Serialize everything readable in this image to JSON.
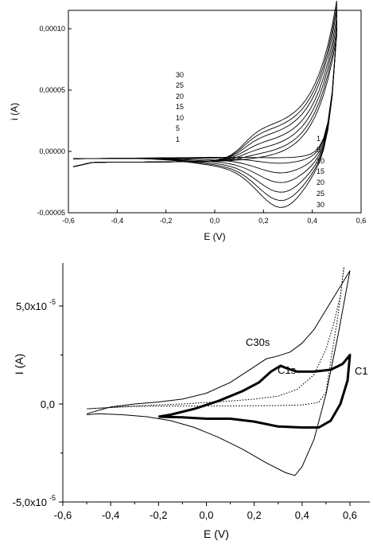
{
  "chart_data": [
    {
      "type": "line",
      "xlabel": "E (V)",
      "ylabel": "i (A)",
      "xlim": [
        -0.6,
        0.6
      ],
      "ylim": [
        -5e-05,
        0.000115
      ],
      "x_ticks": [
        -0.6,
        -0.4,
        -0.2,
        0.0,
        0.2,
        0.4,
        0.6
      ],
      "x_tick_labels": [
        "-0,6",
        "-0,4",
        "-0,2",
        "0,0",
        "0,2",
        "0,4",
        "0,6"
      ],
      "y_ticks": [
        -5e-05,
        0.0,
        5e-05,
        0.0001
      ],
      "y_tick_labels": [
        "-0,00005",
        "0,00000",
        "0,00005",
        "0,00010"
      ],
      "anodic_labels": [
        "30",
        "25",
        "20",
        "15",
        "10",
        "5",
        "1"
      ],
      "cathodic_labels": [
        "1",
        "5",
        "10",
        "15",
        "20",
        "25",
        "30"
      ],
      "series": [
        {
          "cycle": 1,
          "anodic_peak_i": 1e-06,
          "cathodic_peak_i": -1e-06,
          "end_i": 0.0001
        },
        {
          "cycle": 5,
          "anodic_peak_i": 4.5e-06,
          "cathodic_peak_i": -5e-06,
          "end_i": 0.000101
        },
        {
          "cycle": 10,
          "anodic_peak_i": 9e-06,
          "cathodic_peak_i": -1.2e-05,
          "end_i": 0.000102
        },
        {
          "cycle": 15,
          "anodic_peak_i": 1.4e-05,
          "cathodic_peak_i": -1.9e-05,
          "end_i": 0.000102
        },
        {
          "cycle": 20,
          "anodic_peak_i": 1.9e-05,
          "cathodic_peak_i": -2.6e-05,
          "end_i": 0.000103
        },
        {
          "cycle": 25,
          "anodic_peak_i": 2.3e-05,
          "cathodic_peak_i": -3.2e-05,
          "end_i": 0.000103
        },
        {
          "cycle": 30,
          "anodic_peak_i": 2.65e-05,
          "cathodic_peak_i": -3.7e-05,
          "end_i": 0.000104
        }
      ]
    },
    {
      "type": "line",
      "xlabel": "E (V)",
      "ylabel": "I (A)",
      "xlim": [
        -0.6,
        0.6
      ],
      "ylim": [
        -5e-05,
        7e-05
      ],
      "x_ticks": [
        -0.6,
        -0.4,
        -0.2,
        0.0,
        0.2,
        0.4,
        0.6
      ],
      "x_tick_labels": [
        "-0,6",
        "-0,4",
        "-0,2",
        "0,0",
        "0,2",
        "0,4",
        "0,6"
      ],
      "y_ticks": [
        -5e-05,
        0.0,
        5e-05
      ],
      "y_tick_mantissas": [
        "-5,0x10",
        "0,0",
        "5,0x10"
      ],
      "y_tick_exponents": [
        "-5",
        "",
        "-5"
      ],
      "series": [
        {
          "name": "C30s",
          "style": "thin",
          "forward": [
            [
              -0.5,
              -5e-06
            ],
            [
              -0.4,
              -1.5e-06
            ],
            [
              -0.3,
              0.0
            ],
            [
              -0.2,
              1e-06
            ],
            [
              -0.1,
              2.5e-06
            ],
            [
              0.0,
              5.5e-06
            ],
            [
              0.1,
              1.1e-05
            ],
            [
              0.2,
              1.9e-05
            ],
            [
              0.25,
              2.3e-05
            ],
            [
              0.3,
              2.45e-05
            ],
            [
              0.35,
              2.65e-05
            ],
            [
              0.4,
              3.1e-05
            ],
            [
              0.45,
              3.8e-05
            ],
            [
              0.5,
              4.8e-05
            ],
            [
              0.55,
              5.8e-05
            ],
            [
              0.6,
              6.8e-05
            ]
          ],
          "reverse": [
            [
              0.6,
              6.8e-05
            ],
            [
              0.55,
              3.5e-05
            ],
            [
              0.5,
              5e-06
            ],
            [
              0.45,
              -1.8e-05
            ],
            [
              0.4,
              -3.2e-05
            ],
            [
              0.37,
              -3.65e-05
            ],
            [
              0.33,
              -3.5e-05
            ],
            [
              0.25,
              -3e-05
            ],
            [
              0.15,
              -2.3e-05
            ],
            [
              0.05,
              -1.7e-05
            ],
            [
              -0.05,
              -1.2e-05
            ],
            [
              -0.15,
              -8.5e-06
            ],
            [
              -0.25,
              -6.5e-06
            ],
            [
              -0.35,
              -5.5e-06
            ],
            [
              -0.45,
              -5e-06
            ],
            [
              -0.5,
              -5.5e-06
            ]
          ]
        },
        {
          "name": "C1s",
          "style": "dotted",
          "forward": [
            [
              -0.5,
              -2.5e-06
            ],
            [
              -0.3,
              -1e-06
            ],
            [
              -0.1,
              0.0
            ],
            [
              0.1,
              1.5e-06
            ],
            [
              0.2,
              2.5e-06
            ],
            [
              0.3,
              4e-06
            ],
            [
              0.38,
              7.5e-06
            ],
            [
              0.45,
              1.5e-05
            ],
            [
              0.5,
              2.8e-05
            ],
            [
              0.53,
              4e-05
            ],
            [
              0.56,
              5.5e-05
            ],
            [
              0.575,
              7e-05
            ]
          ],
          "reverse": [
            [
              0.575,
              7e-05
            ],
            [
              0.55,
              4.5e-05
            ],
            [
              0.52,
              2.2e-05
            ],
            [
              0.5,
              6e-06
            ],
            [
              0.47,
              8e-07
            ],
            [
              0.4,
              -5e-07
            ],
            [
              0.3,
              -8e-07
            ],
            [
              0.1,
              -1e-06
            ],
            [
              -0.1,
              -1e-06
            ],
            [
              -0.3,
              -1.2e-06
            ],
            [
              -0.5,
              -2.5e-06
            ]
          ]
        },
        {
          "name": "C1s",
          "style": "thick",
          "forward": [
            [
              -0.2,
              -6.5e-06
            ],
            [
              -0.15,
              -5.5e-06
            ],
            [
              -0.05,
              -2.5e-06
            ],
            [
              0.05,
              1.5e-06
            ],
            [
              0.15,
              6.5e-06
            ],
            [
              0.22,
              1.1e-05
            ],
            [
              0.27,
              1.65e-05
            ],
            [
              0.31,
              1.95e-05
            ],
            [
              0.34,
              1.8e-05
            ],
            [
              0.38,
              1.65e-05
            ],
            [
              0.45,
              1.65e-05
            ],
            [
              0.52,
              1.75e-05
            ],
            [
              0.57,
              2.05e-05
            ],
            [
              0.6,
              2.5e-05
            ]
          ],
          "reverse": [
            [
              0.6,
              2.5e-05
            ],
            [
              0.59,
              1.2e-05
            ],
            [
              0.56,
              0.0
            ],
            [
              0.52,
              -8.5e-06
            ],
            [
              0.47,
              -1.2e-05
            ],
            [
              0.4,
              -1.2e-05
            ],
            [
              0.3,
              -1.15e-05
            ],
            [
              0.2,
              -9e-06
            ],
            [
              0.1,
              -7.5e-06
            ],
            [
              0.0,
              -7.5e-06
            ],
            [
              -0.1,
              -6.8e-06
            ],
            [
              -0.2,
              -6.5e-06
            ]
          ]
        }
      ],
      "annotations": [
        "C30s",
        "C1s",
        "C1"
      ]
    }
  ]
}
